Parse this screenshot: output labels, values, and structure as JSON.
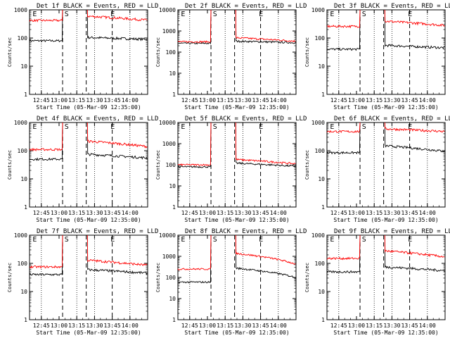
{
  "chart_data": [
    {
      "type": "line",
      "title": "Det 1f BLACK = Events, RED = LLD",
      "ylabel": "Counts/sec",
      "xlabel": "Start Time (05-Mar-09 12:35:00)",
      "x_ticks": [
        "12:45",
        "13:00",
        "13:15",
        "13:30",
        "13:45",
        "14:00"
      ],
      "y_ticks": [
        "1",
        "10",
        "100",
        "1000"
      ],
      "ylim": [
        1,
        1000
      ],
      "yscale": "log",
      "markers": [
        "E",
        "S",
        "E"
      ],
      "series": [
        {
          "color": "#000000",
          "pre": 80,
          "post": 105,
          "end": 90
        },
        {
          "color": "#ff0000",
          "pre": 420,
          "post": 600,
          "end": 430
        }
      ]
    },
    {
      "type": "line",
      "title": "Det 2f BLACK = Events, RED = LLD",
      "ylabel": "Counts/sec",
      "xlabel": "Start Time (05-Mar-09 12:35:00)",
      "x_ticks": [
        "12:45",
        "13:00",
        "13:15",
        "13:30",
        "13:45",
        "14:00"
      ],
      "y_ticks": [
        "1",
        "10",
        "100",
        "1000",
        "10000"
      ],
      "ylim": [
        1,
        10000
      ],
      "yscale": "log",
      "markers": [
        "E",
        "S",
        "E"
      ],
      "series": [
        {
          "color": "#000000",
          "pre": 260,
          "post": 330,
          "end": 280
        },
        {
          "color": "#ff0000",
          "pre": 310,
          "post": 480,
          "end": 330
        }
      ]
    },
    {
      "type": "line",
      "title": "Det 3f BLACK = Events, RED = LLD",
      "ylabel": "Counts/sec",
      "xlabel": "Start Time (05-Mar-09 12:35:00)",
      "x_ticks": [
        "12:45",
        "13:00",
        "13:15",
        "13:30",
        "13:45",
        "14:00"
      ],
      "y_ticks": [
        "1",
        "10",
        "100",
        "1000"
      ],
      "ylim": [
        1,
        1000
      ],
      "yscale": "log",
      "markers": [
        "E",
        "S",
        "E"
      ],
      "series": [
        {
          "color": "#000000",
          "pre": 40,
          "post": 55,
          "end": 45
        },
        {
          "color": "#ff0000",
          "pre": 260,
          "post": 400,
          "end": 280
        }
      ]
    },
    {
      "type": "line",
      "title": "Det 4f BLACK = Events, RED = LLD",
      "ylabel": "Counts/sec",
      "xlabel": "Start Time (05-Mar-09 12:35:00)",
      "x_ticks": [
        "12:45",
        "13:00",
        "13:15",
        "13:30",
        "13:45",
        "14:00"
      ],
      "y_ticks": [
        "1",
        "10",
        "100",
        "1000"
      ],
      "ylim": [
        1,
        1000
      ],
      "yscale": "log",
      "markers": [
        "E",
        "S",
        "E"
      ],
      "series": [
        {
          "color": "#000000",
          "pre": 50,
          "post": 75,
          "end": 55
        },
        {
          "color": "#ff0000",
          "pre": 110,
          "post": 220,
          "end": 140
        }
      ]
    },
    {
      "type": "line",
      "title": "Det 5f BLACK = Events, RED = LLD",
      "ylabel": "Counts/sec",
      "xlabel": "Start Time (05-Mar-09 12:35:00)",
      "x_ticks": [
        "12:45",
        "13:00",
        "13:15",
        "13:30",
        "13:45",
        "14:00"
      ],
      "y_ticks": [
        "1",
        "10",
        "100",
        "1000",
        "10000"
      ],
      "ylim": [
        1,
        10000
      ],
      "yscale": "log",
      "markers": [
        "E",
        "S",
        "E"
      ],
      "series": [
        {
          "color": "#000000",
          "pre": 80,
          "post": 120,
          "end": 85
        },
        {
          "color": "#ff0000",
          "pre": 100,
          "post": 180,
          "end": 110
        }
      ]
    },
    {
      "type": "line",
      "title": "Det 6f BLACK = Events, RED = LLD",
      "ylabel": "Counts/sec",
      "xlabel": "Start Time (05-Mar-09 12:35:00)",
      "x_ticks": [
        "12:45",
        "13:00",
        "13:15",
        "13:30",
        "13:45",
        "14:00"
      ],
      "y_ticks": [
        "1",
        "10",
        "100",
        "1000"
      ],
      "ylim": [
        1,
        1000
      ],
      "yscale": "log",
      "markers": [
        "E",
        "S",
        "E"
      ],
      "series": [
        {
          "color": "#000000",
          "pre": 85,
          "post": 150,
          "end": 95
        },
        {
          "color": "#ff0000",
          "pre": 480,
          "post": 600,
          "end": 480
        }
      ]
    },
    {
      "type": "line",
      "title": "Det 7f BLACK = Events, RED = LLD",
      "ylabel": "Counts/sec",
      "xlabel": "Start Time (05-Mar-09 12:35:00)",
      "x_ticks": [
        "12:45",
        "13:00",
        "13:15",
        "13:30",
        "13:45",
        "14:00"
      ],
      "y_ticks": [
        "1",
        "10",
        "100",
        "1000"
      ],
      "ylim": [
        1,
        1000
      ],
      "yscale": "log",
      "markers": [
        "E",
        "S",
        "E"
      ],
      "series": [
        {
          "color": "#000000",
          "pre": 40,
          "post": 60,
          "end": 45
        },
        {
          "color": "#ff0000",
          "pre": 75,
          "post": 130,
          "end": 85
        }
      ]
    },
    {
      "type": "line",
      "title": "Det 8f BLACK = Events, RED = LLD",
      "ylabel": "Counts/sec",
      "xlabel": "Start Time (05-Mar-09 12:35:00)",
      "x_ticks": [
        "12:45",
        "13:00",
        "13:15",
        "13:30",
        "13:45",
        "14:00"
      ],
      "y_ticks": [
        "1",
        "10",
        "100",
        "1000",
        "10000"
      ],
      "ylim": [
        1,
        10000
      ],
      "yscale": "log",
      "markers": [
        "E",
        "S",
        "E"
      ],
      "series": [
        {
          "color": "#000000",
          "pre": 60,
          "post": 280,
          "end": 100
        },
        {
          "color": "#ff0000",
          "pre": 250,
          "post": 1400,
          "end": 420
        }
      ]
    },
    {
      "type": "line",
      "title": "Det 9f BLACK = Events, RED = LLD",
      "ylabel": "Counts/sec",
      "xlabel": "Start Time (05-Mar-09 12:35:00)",
      "x_ticks": [
        "12:45",
        "13:00",
        "13:15",
        "13:30",
        "13:45",
        "14:00"
      ],
      "y_ticks": [
        "1",
        "10",
        "100",
        "1000"
      ],
      "ylim": [
        1,
        1000
      ],
      "yscale": "log",
      "markers": [
        "E",
        "S",
        "E"
      ],
      "series": [
        {
          "color": "#000000",
          "pre": 50,
          "post": 75,
          "end": 55
        },
        {
          "color": "#ff0000",
          "pre": 150,
          "post": 280,
          "end": 170
        }
      ]
    }
  ]
}
